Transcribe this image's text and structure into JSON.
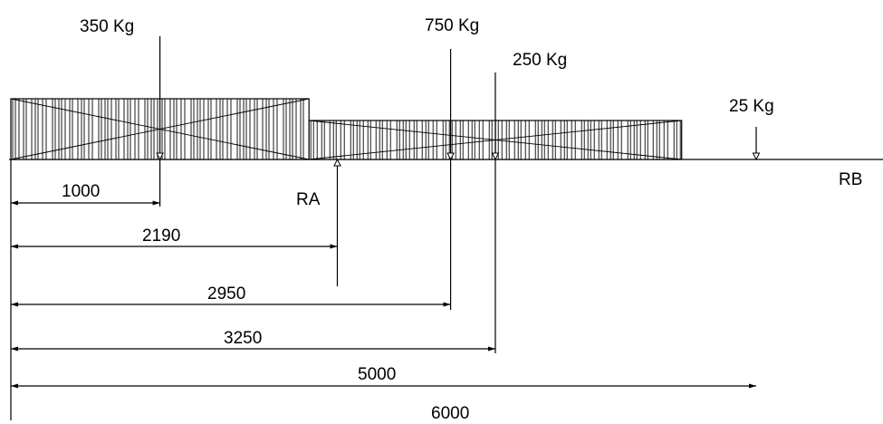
{
  "loads": [
    {
      "label": "350 Kg",
      "position_mm": 1000
    },
    {
      "label": "750 Kg",
      "position_mm": 2950
    },
    {
      "label": "250 Kg",
      "position_mm": 3250
    },
    {
      "label": "25 Kg",
      "position_mm": 5000
    }
  ],
  "supports": [
    {
      "label": "RA",
      "position_mm": 2190
    },
    {
      "label": "RB",
      "position_mm": 6000
    }
  ],
  "dimensions": [
    {
      "label": "1000",
      "value_mm": 1000
    },
    {
      "label": "2190",
      "value_mm": 2190
    },
    {
      "label": "2950",
      "value_mm": 2950
    },
    {
      "label": "3250",
      "value_mm": 3250
    },
    {
      "label": "5000",
      "value_mm": 5000
    },
    {
      "label": "6000",
      "value_mm": 6000
    }
  ],
  "blocks": [
    {
      "name": "block-tall",
      "start_mm": 0,
      "end_mm": 2000
    },
    {
      "name": "block-short",
      "start_mm": 2000,
      "end_mm": 4500
    }
  ]
}
